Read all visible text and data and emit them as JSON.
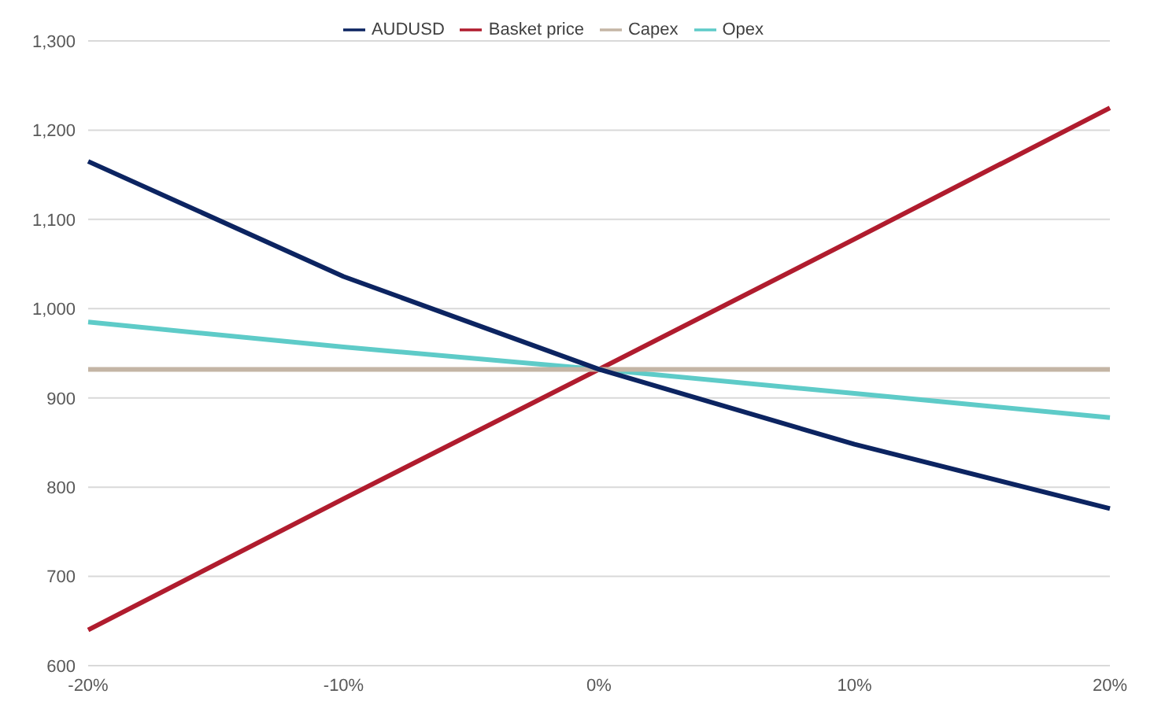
{
  "chart_data": {
    "type": "line",
    "categories": [
      "-20%",
      "-10%",
      "0%",
      "10%",
      "20%"
    ],
    "series": [
      {
        "name": "Basket price",
        "color": "#b01c2e",
        "values": [
          640,
          787,
          932,
          1078,
          1225
        ]
      },
      {
        "name": "Opex",
        "color": "#5ecbc8",
        "values": [
          985,
          957,
          932,
          905,
          878
        ]
      },
      {
        "name": "Capex",
        "color": "#c4b5a5",
        "values": [
          932,
          932,
          932,
          932,
          932
        ]
      },
      {
        "name": "AUDUSD",
        "color": "#0c2461",
        "values": [
          1165,
          1036,
          932,
          848,
          776
        ]
      }
    ],
    "ylim": [
      600,
      1300
    ],
    "yticks": [
      {
        "value": 600,
        "label": "600"
      },
      {
        "value": 700,
        "label": "700"
      },
      {
        "value": 800,
        "label": "800"
      },
      {
        "value": 900,
        "label": "900"
      },
      {
        "value": 1000,
        "label": "1,000"
      },
      {
        "value": 1100,
        "label": "1,100"
      },
      {
        "value": 1200,
        "label": "1,200"
      },
      {
        "value": 1300,
        "label": "1,300"
      }
    ],
    "grid": "y",
    "legend": "top",
    "marker": "none",
    "line_style": "solid"
  }
}
